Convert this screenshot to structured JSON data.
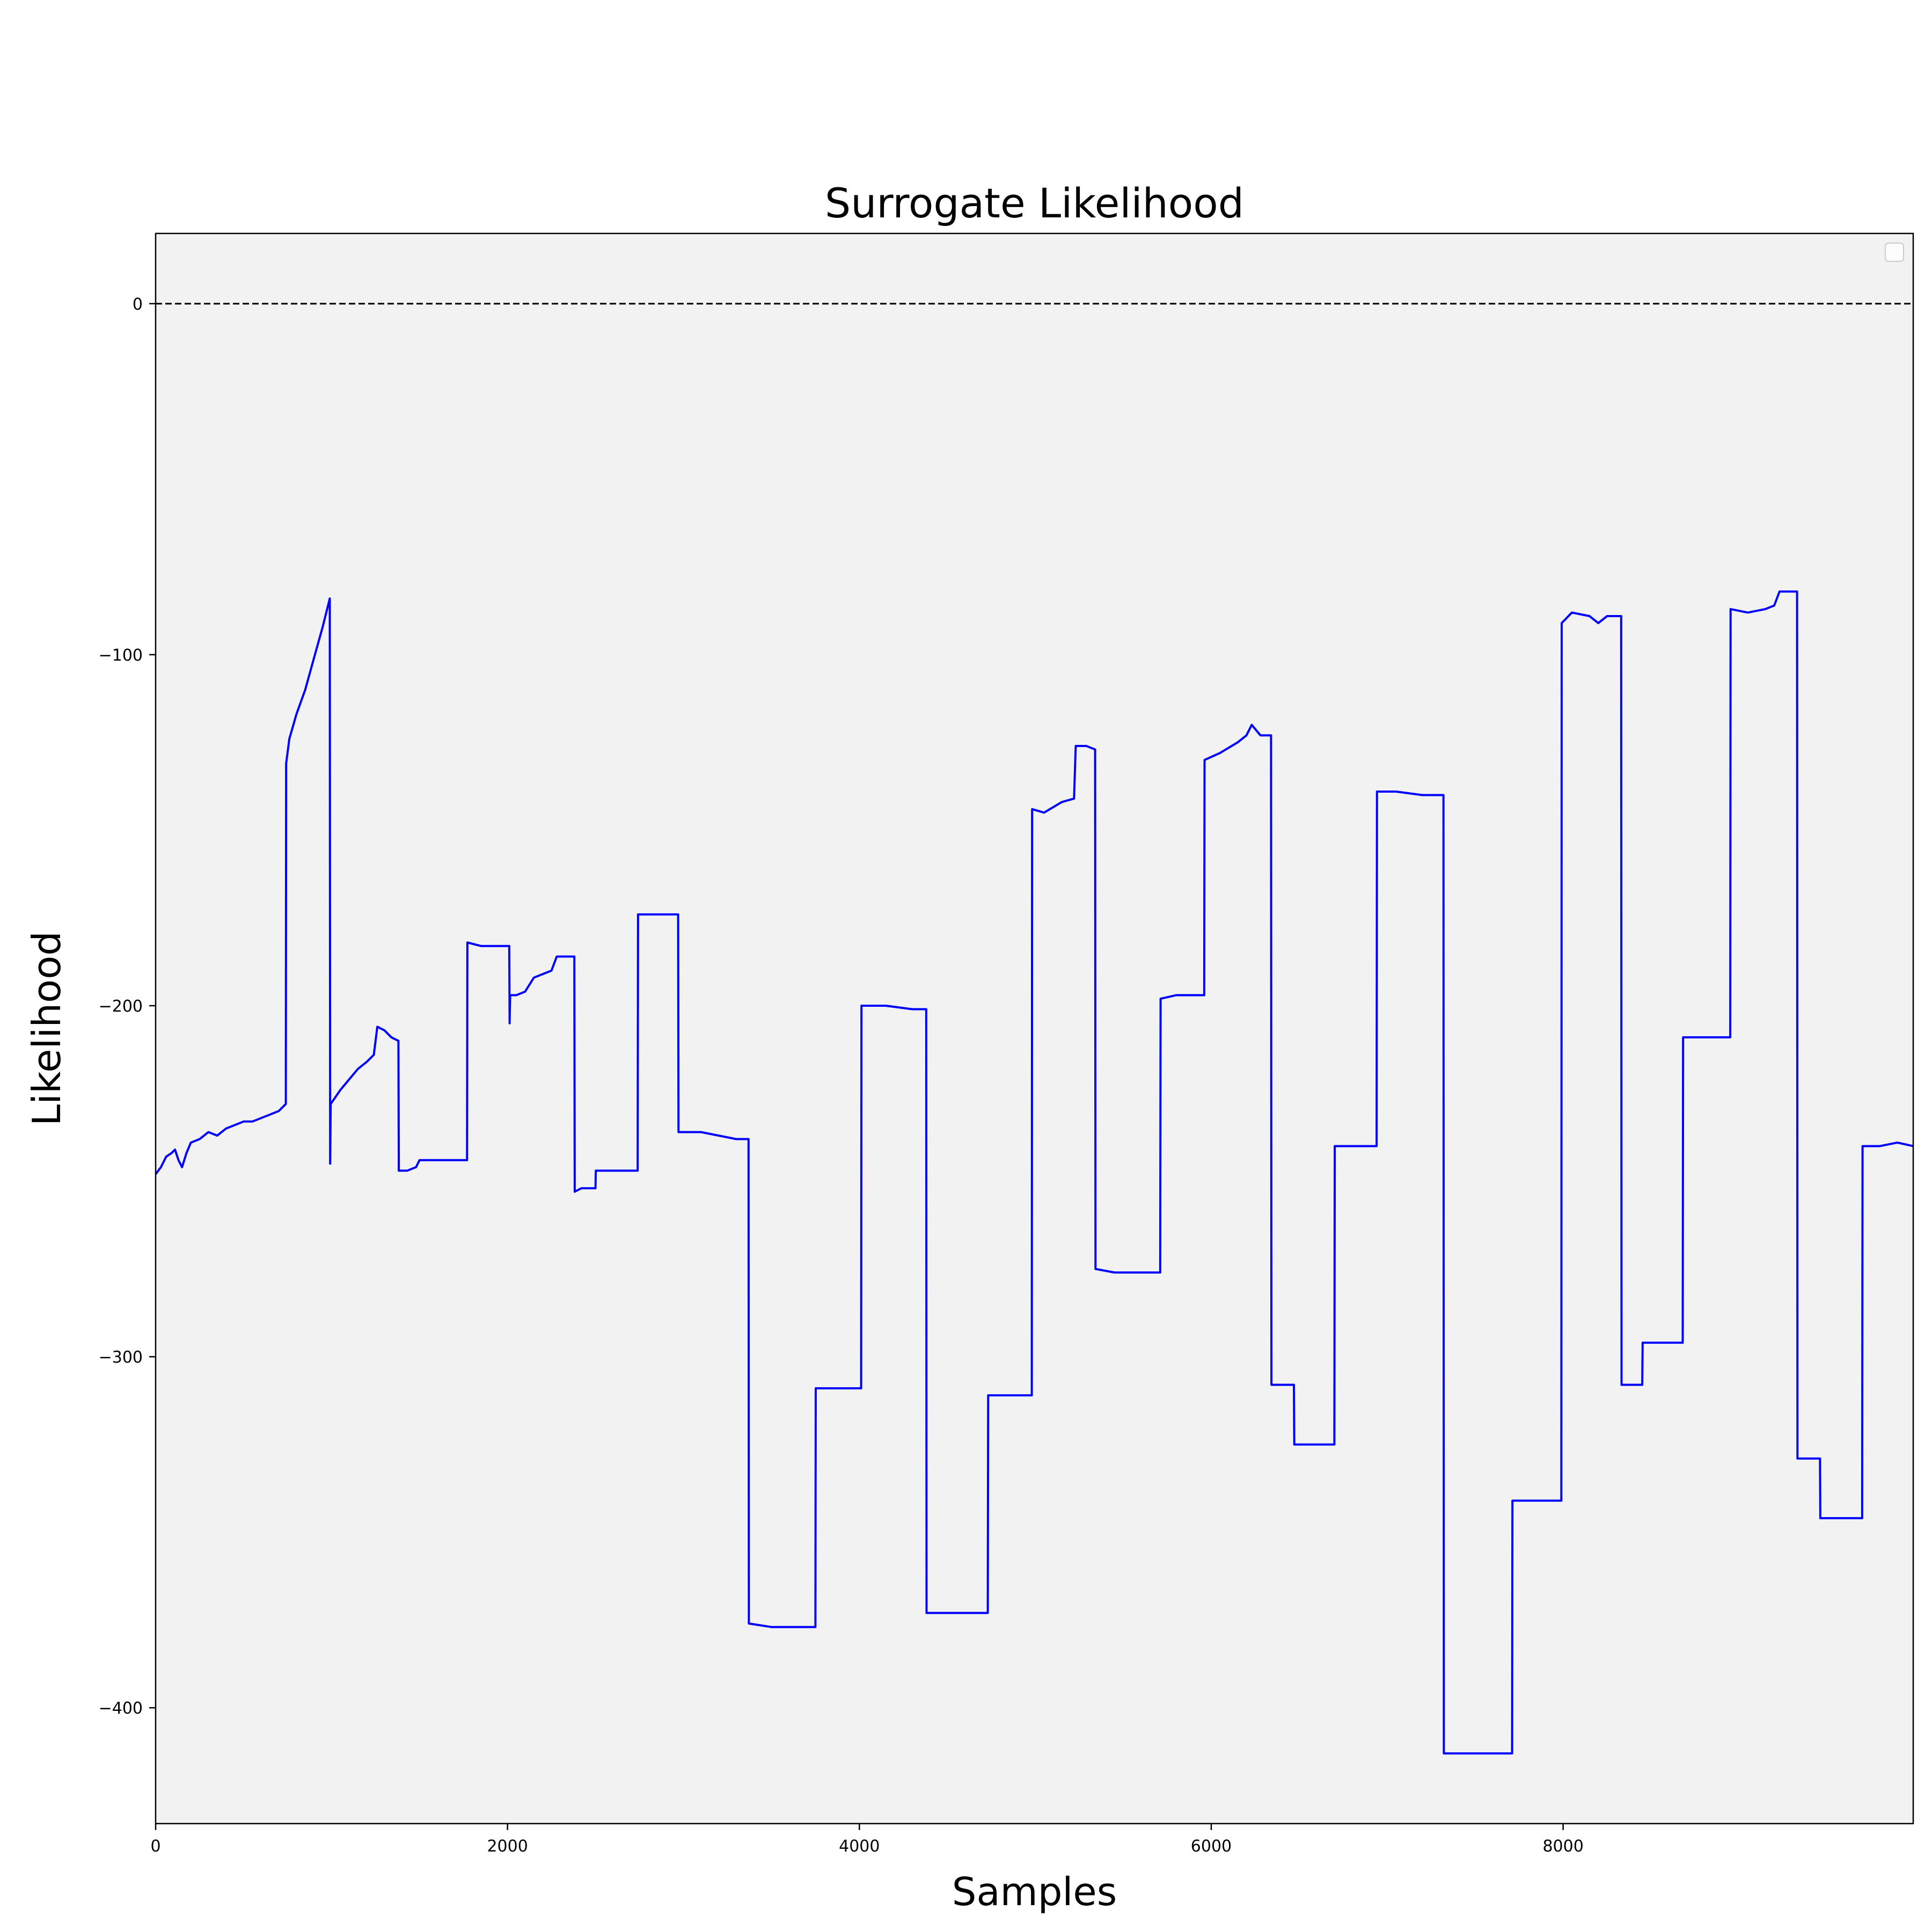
{
  "chart_data": {
    "type": "line",
    "title": "Surrogate  Likelihood",
    "xlabel": "Samples",
    "ylabel": "Likelihood",
    "xlim": [
      0,
      9990
    ],
    "ylim": [
      -433,
      20
    ],
    "xticks": [
      0,
      2000,
      4000,
      6000,
      8000
    ],
    "xtick_labels": [
      "0",
      "2000",
      "4000",
      "6000",
      "8000"
    ],
    "yticks": [
      0,
      -100,
      -200,
      -300,
      -400
    ],
    "ytick_labels": [
      "0",
      "−100",
      "−200",
      "−300",
      "−400"
    ],
    "reference_line": {
      "y": 0,
      "style": "dashed",
      "color": "#000000"
    },
    "legend": {
      "placement": "top-right",
      "entries": []
    },
    "grid": false,
    "background_color": "#f2f2f2",
    "series": [
      {
        "color": "#0000ff",
        "points": [
          [
            0,
            -248
          ],
          [
            30,
            -246
          ],
          [
            60,
            -243
          ],
          [
            90,
            -242
          ],
          [
            110,
            -241
          ],
          [
            130,
            -244
          ],
          [
            150,
            -246
          ],
          [
            175,
            -242
          ],
          [
            200,
            -239
          ],
          [
            250,
            -238
          ],
          [
            300,
            -236
          ],
          [
            350,
            -237
          ],
          [
            400,
            -235
          ],
          [
            450,
            -234
          ],
          [
            500,
            -233
          ],
          [
            550,
            -233
          ],
          [
            600,
            -232
          ],
          [
            650,
            -231
          ],
          [
            700,
            -230
          ],
          [
            740,
            -228
          ],
          [
            742,
            -131
          ],
          [
            760,
            -124
          ],
          [
            800,
            -117
          ],
          [
            850,
            -110
          ],
          [
            900,
            -101
          ],
          [
            950,
            -92
          ],
          [
            990,
            -84
          ],
          [
            992,
            -245
          ],
          [
            995,
            -228
          ],
          [
            1050,
            -224
          ],
          [
            1100,
            -221
          ],
          [
            1150,
            -218
          ],
          [
            1200,
            -216
          ],
          [
            1240,
            -214
          ],
          [
            1260,
            -206
          ],
          [
            1300,
            -207
          ],
          [
            1340,
            -209
          ],
          [
            1380,
            -210
          ],
          [
            1382,
            -247
          ],
          [
            1430,
            -247
          ],
          [
            1480,
            -246
          ],
          [
            1500,
            -244
          ],
          [
            1600,
            -244
          ],
          [
            1700,
            -244
          ],
          [
            1770,
            -244
          ],
          [
            1772,
            -182
          ],
          [
            1850,
            -183
          ],
          [
            1950,
            -183
          ],
          [
            2010,
            -183
          ],
          [
            2012,
            -205
          ],
          [
            2015,
            -197
          ],
          [
            2050,
            -197
          ],
          [
            2100,
            -196
          ],
          [
            2150,
            -192
          ],
          [
            2200,
            -191
          ],
          [
            2250,
            -190
          ],
          [
            2280,
            -186
          ],
          [
            2330,
            -186
          ],
          [
            2380,
            -186
          ],
          [
            2382,
            -253
          ],
          [
            2420,
            -252
          ],
          [
            2480,
            -252
          ],
          [
            2500,
            -252
          ],
          [
            2502,
            -247
          ],
          [
            2600,
            -247
          ],
          [
            2700,
            -247
          ],
          [
            2740,
            -247
          ],
          [
            2742,
            -174
          ],
          [
            2850,
            -174
          ],
          [
            2950,
            -174
          ],
          [
            2970,
            -174
          ],
          [
            2972,
            -236
          ],
          [
            3100,
            -236
          ],
          [
            3200,
            -237
          ],
          [
            3300,
            -238
          ],
          [
            3370,
            -238
          ],
          [
            3372,
            -376
          ],
          [
            3500,
            -377
          ],
          [
            3650,
            -377
          ],
          [
            3750,
            -377
          ],
          [
            3752,
            -309
          ],
          [
            3850,
            -309
          ],
          [
            3950,
            -309
          ],
          [
            4010,
            -309
          ],
          [
            4012,
            -200
          ],
          [
            4150,
            -200
          ],
          [
            4300,
            -201
          ],
          [
            4380,
            -201
          ],
          [
            4382,
            -373
          ],
          [
            4500,
            -373
          ],
          [
            4600,
            -373
          ],
          [
            4730,
            -373
          ],
          [
            4732,
            -311
          ],
          [
            4850,
            -311
          ],
          [
            4980,
            -311
          ],
          [
            4982,
            -144
          ],
          [
            5050,
            -145
          ],
          [
            5150,
            -142
          ],
          [
            5220,
            -141
          ],
          [
            5230,
            -126
          ],
          [
            5290,
            -126
          ],
          [
            5340,
            -127
          ],
          [
            5342,
            -275
          ],
          [
            5450,
            -276
          ],
          [
            5600,
            -276
          ],
          [
            5710,
            -276
          ],
          [
            5712,
            -198
          ],
          [
            5800,
            -197
          ],
          [
            5900,
            -197
          ],
          [
            5960,
            -197
          ],
          [
            5962,
            -130
          ],
          [
            6050,
            -128
          ],
          [
            6150,
            -125
          ],
          [
            6200,
            -123
          ],
          [
            6230,
            -120
          ],
          [
            6280,
            -123
          ],
          [
            6340,
            -123
          ],
          [
            6342,
            -308
          ],
          [
            6400,
            -308
          ],
          [
            6470,
            -308
          ],
          [
            6472,
            -325
          ],
          [
            6580,
            -325
          ],
          [
            6700,
            -325
          ],
          [
            6702,
            -240
          ],
          [
            6800,
            -240
          ],
          [
            6900,
            -240
          ],
          [
            6940,
            -240
          ],
          [
            6942,
            -139
          ],
          [
            7050,
            -139
          ],
          [
            7200,
            -140
          ],
          [
            7320,
            -140
          ],
          [
            7322,
            -413
          ],
          [
            7450,
            -413
          ],
          [
            7600,
            -413
          ],
          [
            7710,
            -413
          ],
          [
            7712,
            -341
          ],
          [
            7800,
            -341
          ],
          [
            7900,
            -341
          ],
          [
            7990,
            -341
          ],
          [
            7992,
            -91
          ],
          [
            8050,
            -88
          ],
          [
            8150,
            -89
          ],
          [
            8200,
            -91
          ],
          [
            8250,
            -89
          ],
          [
            8300,
            -89
          ],
          [
            8330,
            -89
          ],
          [
            8332,
            -308
          ],
          [
            8400,
            -308
          ],
          [
            8450,
            -308
          ],
          [
            8452,
            -296
          ],
          [
            8550,
            -296
          ],
          [
            8680,
            -296
          ],
          [
            8682,
            -209
          ],
          [
            8800,
            -209
          ],
          [
            8950,
            -209
          ],
          [
            8952,
            -87
          ],
          [
            9050,
            -88
          ],
          [
            9150,
            -87
          ],
          [
            9200,
            -86
          ],
          [
            9230,
            -82
          ],
          [
            9300,
            -82
          ],
          [
            9330,
            -82
          ],
          [
            9332,
            -329
          ],
          [
            9400,
            -329
          ],
          [
            9460,
            -329
          ],
          [
            9462,
            -346
          ],
          [
            9550,
            -346
          ],
          [
            9700,
            -346
          ],
          [
            9702,
            -240
          ],
          [
            9800,
            -240
          ],
          [
            9900,
            -239
          ],
          [
            9990,
            -240
          ]
        ]
      }
    ]
  }
}
